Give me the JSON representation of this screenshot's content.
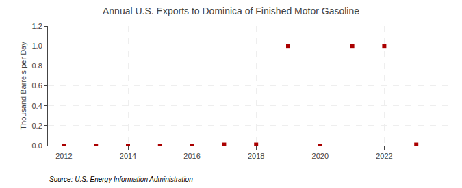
{
  "chart_data": {
    "type": "scatter",
    "title": "Annual U.S. Exports to Dominica of Finished Motor Gasoline",
    "y_label": "Thousand Barrels per Day",
    "annotations": [
      "Source: U.S. Energy Information Administration"
    ],
    "x": [
      2012,
      2013,
      2014,
      2015,
      2016,
      2017,
      2018,
      2019,
      2020,
      2021,
      2022,
      2023
    ],
    "values": [
      0.0,
      0.0,
      0.0,
      0.0,
      0.0,
      0.01,
      0.01,
      1.0,
      0.0,
      1.0,
      1.0,
      0.01
    ],
    "color": "#aa0000",
    "marker": "square",
    "xlim": [
      2011.5,
      2024.0
    ],
    "xticks": [
      2012,
      2014,
      2016,
      2018,
      2020,
      2022
    ],
    "ylim": [
      0.0,
      1.2
    ],
    "yticks": [
      {
        "value": 0.0,
        "label": "0.0"
      },
      0.2,
      0.4,
      0.6,
      0.8,
      {
        "value": 1.0,
        "label": "1.0"
      },
      1.2
    ],
    "grid": true
  }
}
